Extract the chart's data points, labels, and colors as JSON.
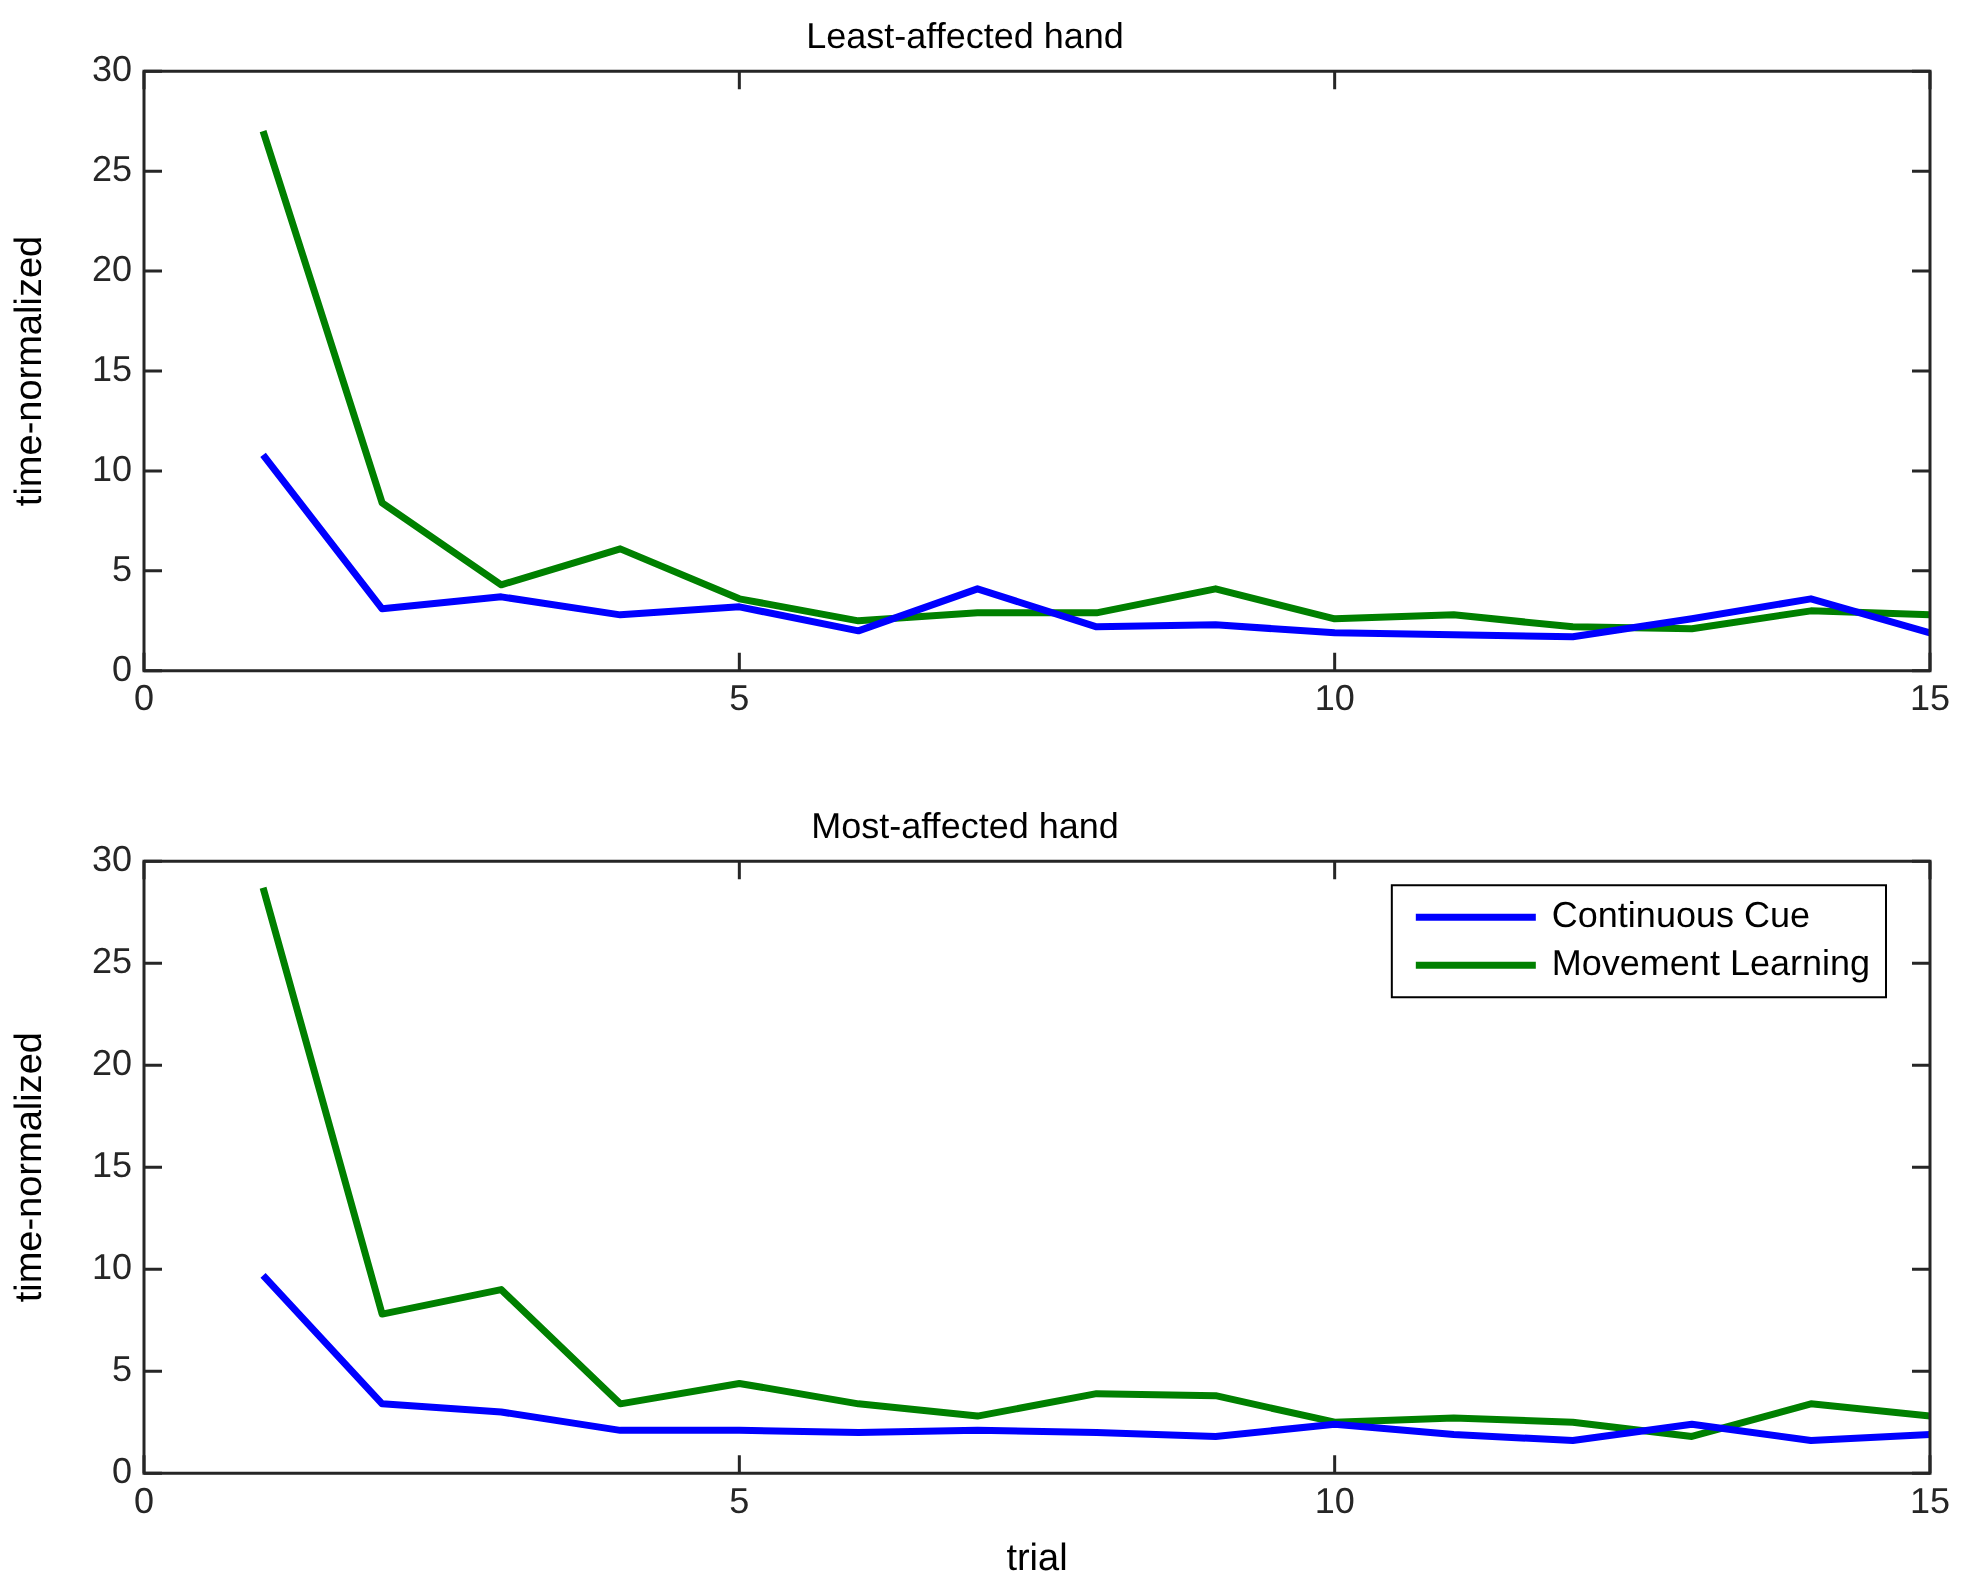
{
  "chart_data": [
    {
      "type": "line",
      "title": "Least-affected hand",
      "ylabel": "time-normalized",
      "x": [
        1,
        2,
        3,
        4,
        5,
        6,
        7,
        8,
        9,
        10,
        11,
        12,
        13,
        14,
        15
      ],
      "series": [
        {
          "color": "#0000ff",
          "values": [
            10.8,
            3.1,
            3.7,
            2.8,
            3.2,
            2.0,
            4.1,
            2.2,
            2.3,
            1.9,
            1.8,
            1.7,
            2.6,
            3.6,
            1.9
          ]
        },
        {
          "color": "#008000",
          "values": [
            27.0,
            8.4,
            4.3,
            6.1,
            3.6,
            2.5,
            2.9,
            2.9,
            4.1,
            2.6,
            2.8,
            2.2,
            2.1,
            3.0,
            2.8
          ]
        }
      ],
      "xlim": [
        0,
        15
      ],
      "xticks": [
        0,
        5,
        10,
        15
      ],
      "ylim": [
        0,
        30
      ],
      "yticks": [
        0,
        5,
        10,
        15,
        20,
        25,
        30
      ],
      "grid": false,
      "legend": false,
      "marker": "none",
      "line_style": "solid"
    },
    {
      "type": "line",
      "title": "Most-affected hand",
      "xlabel": "trial",
      "ylabel": "time-normalized",
      "x": [
        1,
        2,
        3,
        4,
        5,
        6,
        7,
        8,
        9,
        10,
        11,
        12,
        13,
        14,
        15
      ],
      "series": [
        {
          "name": "Continuous Cue",
          "color": "#0000ff",
          "values": [
            9.7,
            3.4,
            3.0,
            2.1,
            2.1,
            2.0,
            2.1,
            2.0,
            1.8,
            2.4,
            1.9,
            1.6,
            2.4,
            1.6,
            1.9
          ]
        },
        {
          "name": "Movement Learning",
          "color": "#008000",
          "values": [
            28.7,
            7.8,
            9.0,
            3.4,
            4.4,
            3.4,
            2.8,
            3.9,
            3.8,
            2.5,
            2.7,
            2.5,
            1.8,
            3.4,
            2.8
          ]
        }
      ],
      "xlim": [
        0,
        15
      ],
      "xticks": [
        0,
        5,
        10,
        15
      ],
      "ylim": [
        0,
        30
      ],
      "yticks": [
        0,
        5,
        10,
        15,
        20,
        25,
        30
      ],
      "grid": false,
      "legend": "top right",
      "marker": "none",
      "line_style": "solid"
    }
  ]
}
